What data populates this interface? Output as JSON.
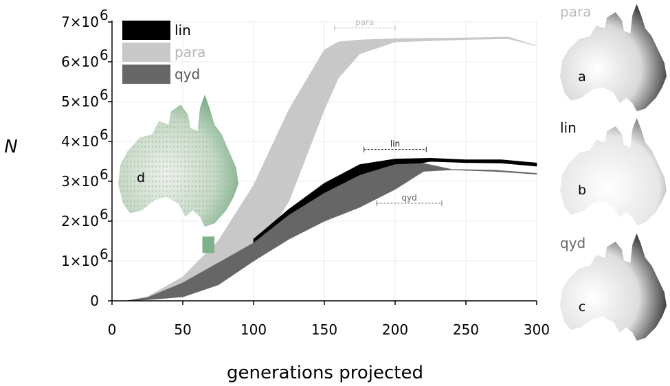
{
  "chart_data": {
    "type": "area",
    "xlabel": "generations projected",
    "ylabel": "N",
    "xlim": [
      0,
      300
    ],
    "ylim": [
      0,
      7000000
    ],
    "x_ticks": [
      "0",
      "50",
      "100",
      "150",
      "200",
      "250",
      "300"
    ],
    "y_ticks": [
      {
        "mant": "0",
        "exp": ""
      },
      {
        "mant": "1×10",
        "exp": "6"
      },
      {
        "mant": "2×10",
        "exp": "6"
      },
      {
        "mant": "3×10",
        "exp": "6"
      },
      {
        "mant": "4×10",
        "exp": "6"
      },
      {
        "mant": "5×10",
        "exp": "6"
      },
      {
        "mant": "6×10",
        "exp": "6"
      },
      {
        "mant": "7×10",
        "exp": "6"
      }
    ],
    "grid": true,
    "legend_position": "top-left",
    "series": [
      {
        "name": "para",
        "color": "#c8c8c8",
        "x": [
          10,
          25,
          50,
          75,
          100,
          125,
          150,
          160,
          175,
          200,
          250,
          280,
          300
        ],
        "upper": [
          0,
          100000,
          600000,
          1500000,
          2900000,
          4800000,
          6300000,
          6500000,
          6550000,
          6580000,
          6600000,
          6620000,
          6400000
        ],
        "lower": [
          0,
          30000,
          150000,
          500000,
          1100000,
          2500000,
          4800000,
          5600000,
          6200000,
          6500000,
          6560000,
          6580000,
          6400000
        ]
      },
      {
        "name": "lin",
        "color": "#000000",
        "x": [
          100,
          125,
          150,
          175,
          200,
          225,
          250,
          275,
          300
        ],
        "upper": [
          1550000,
          2300000,
          2950000,
          3420000,
          3560000,
          3580000,
          3540000,
          3540000,
          3460000
        ],
        "lower": [
          1450000,
          2100000,
          2650000,
          3050000,
          3350000,
          3500000,
          3470000,
          3460000,
          3380000
        ]
      },
      {
        "name": "qyd",
        "color": "#666666",
        "x": [
          10,
          25,
          50,
          75,
          100,
          125,
          150,
          175,
          200,
          220,
          240,
          270,
          300
        ],
        "upper": [
          0,
          80000,
          450000,
          950000,
          1450000,
          2150000,
          2700000,
          3150000,
          3420000,
          3450000,
          3300000,
          3280000,
          3200000
        ],
        "lower": [
          0,
          30000,
          100000,
          400000,
          1000000,
          1550000,
          2000000,
          2350000,
          2800000,
          3250000,
          3290000,
          3250000,
          3180000
        ]
      }
    ],
    "range_brackets": [
      {
        "label": "para",
        "x_from": 157,
        "x_to": 200,
        "y": 6850000,
        "color": "#bbbbbb"
      },
      {
        "label": "lin",
        "x_from": 178,
        "x_to": 222,
        "y": 3800000,
        "color": "#222222"
      },
      {
        "label": "qyd",
        "x_from": 187,
        "x_to": 233,
        "y": 2450000,
        "color": "#666666"
      }
    ],
    "inset_panels": [
      {
        "letter": "d",
        "tag": ""
      },
      {
        "letter": "a",
        "tag": "para",
        "tag_color": "#bbbbbb"
      },
      {
        "letter": "b",
        "tag": "lin",
        "tag_color": "#000000"
      },
      {
        "letter": "c",
        "tag": "qyd",
        "tag_color": "#666666"
      }
    ]
  }
}
